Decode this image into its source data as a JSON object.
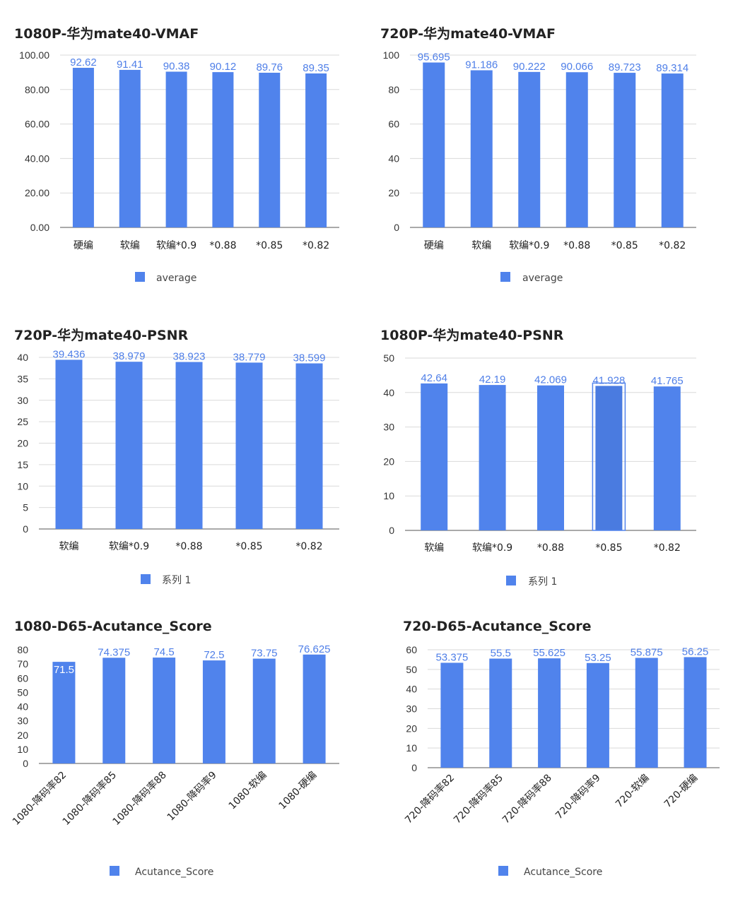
{
  "charts": [
    {
      "title": "1080P-华为mate40-VMAF",
      "legend": "average",
      "accent": "#5083ec",
      "chart_data": {
        "type": "bar",
        "title": "1080P-华为mate40-VMAF",
        "categories": [
          "硬编",
          "软编",
          "软编*0.9",
          "*0.88",
          "*0.85",
          "*0.82"
        ],
        "series": [
          {
            "name": "average",
            "values": [
              92.62,
              91.41,
              90.38,
              90.12,
              89.76,
              89.35
            ]
          }
        ],
        "value_labels": [
          "92.62",
          "91.41",
          "90.38",
          "90.12",
          "89.76",
          "89.35"
        ],
        "ylim": [
          0,
          100
        ],
        "yticks": [
          "0.00",
          "20.00",
          "40.00",
          "60.00",
          "80.00",
          "100.00"
        ],
        "grid": true,
        "legend_position": "bottom"
      }
    },
    {
      "title": "720P-华为mate40-VMAF",
      "legend": "average",
      "accent": "#5083ec",
      "chart_data": {
        "type": "bar",
        "title": "720P-华为mate40-VMAF",
        "categories": [
          "硬编",
          "软编",
          "软编*0.9",
          "*0.88",
          "*0.85",
          "*0.82"
        ],
        "series": [
          {
            "name": "average",
            "values": [
              95.695,
              91.186,
              90.222,
              90.066,
              89.723,
              89.314
            ]
          }
        ],
        "value_labels": [
          "95.695",
          "91.186",
          "90.222",
          "90.066",
          "89.723",
          "89.314"
        ],
        "ylim": [
          0,
          100
        ],
        "yticks": [
          "0",
          "20",
          "40",
          "60",
          "80",
          "100"
        ],
        "grid": true,
        "legend_position": "bottom"
      }
    },
    {
      "title": "720P-华为mate40-PSNR",
      "legend": "系列 1",
      "accent": "#5083ec",
      "chart_data": {
        "type": "bar",
        "title": "720P-华为mate40-PSNR",
        "categories": [
          "软编",
          "软编*0.9",
          "*0.88",
          "*0.85",
          "*0.82"
        ],
        "series": [
          {
            "name": "系列 1",
            "values": [
              39.436,
              38.979,
              38.923,
              38.779,
              38.599
            ]
          }
        ],
        "value_labels": [
          "39.436",
          "38.979",
          "38.923",
          "38.779",
          "38.599"
        ],
        "ylim": [
          0,
          40
        ],
        "yticks": [
          "0",
          "5",
          "10",
          "15",
          "20",
          "25",
          "30",
          "35",
          "40"
        ],
        "grid": true,
        "legend_position": "bottom"
      }
    },
    {
      "title": "1080P-华为mate40-PSNR",
      "legend": "系列 1",
      "accent": "#5083ec",
      "highlight_color": "#4a7be0",
      "chart_data": {
        "type": "bar",
        "title": "1080P-华为mate40-PSNR",
        "categories": [
          "软编",
          "软编*0.9",
          "*0.88",
          "*0.85",
          "*0.82"
        ],
        "series": [
          {
            "name": "系列 1",
            "values": [
              42.64,
              42.19,
              42.069,
              41.928,
              41.765
            ]
          }
        ],
        "value_labels": [
          "42.64",
          "42.19",
          "42.069",
          "41.928",
          "41.765"
        ],
        "highlighted_index": 3,
        "ylim": [
          0,
          50
        ],
        "yticks": [
          "0",
          "10",
          "20",
          "30",
          "40",
          "50"
        ],
        "grid": true,
        "legend_position": "bottom"
      }
    },
    {
      "title": "1080-D65-Acutance_Score",
      "legend": "Acutance_Score",
      "accent": "#5083ec",
      "chart_data": {
        "type": "bar",
        "title": "1080-D65-Acutance_Score",
        "categories": [
          "1080-降码率82",
          "1080-降码率85",
          "1080-降码率88",
          "1080-降码率9",
          "1080-软编",
          "1080-硬编"
        ],
        "series": [
          {
            "name": "Acutance_Score",
            "values": [
              71.5,
              74.375,
              74.5,
              72.5,
              73.75,
              76.625
            ]
          }
        ],
        "value_labels": [
          "71.5",
          "74.375",
          "74.5",
          "72.5",
          "73.75",
          "76.625"
        ],
        "ylim": [
          0,
          80
        ],
        "yticks": [
          "0",
          "10",
          "20",
          "30",
          "40",
          "50",
          "60",
          "70",
          "80"
        ],
        "grid": false,
        "legend_position": "bottom"
      }
    },
    {
      "title": "720-D65-Acutance_Score",
      "legend": "Acutance_Score",
      "accent": "#5083ec",
      "chart_data": {
        "type": "bar",
        "title": "720-D65-Acutance_Score",
        "categories": [
          "720-降码率82",
          "720-降码率85",
          "720-降码率88",
          "720-降码率9",
          "720-软编",
          "720-硬编"
        ],
        "series": [
          {
            "name": "Acutance_Score",
            "values": [
              53.375,
              55.5,
              55.625,
              53.25,
              55.875,
              56.25
            ]
          }
        ],
        "value_labels": [
          "53.375",
          "55.5",
          "55.625",
          "53.25",
          "55.875",
          "56.25"
        ],
        "ylim": [
          0,
          60
        ],
        "yticks": [
          "0",
          "10",
          "20",
          "30",
          "40",
          "50",
          "60"
        ],
        "grid": true,
        "legend_position": "bottom"
      }
    }
  ]
}
